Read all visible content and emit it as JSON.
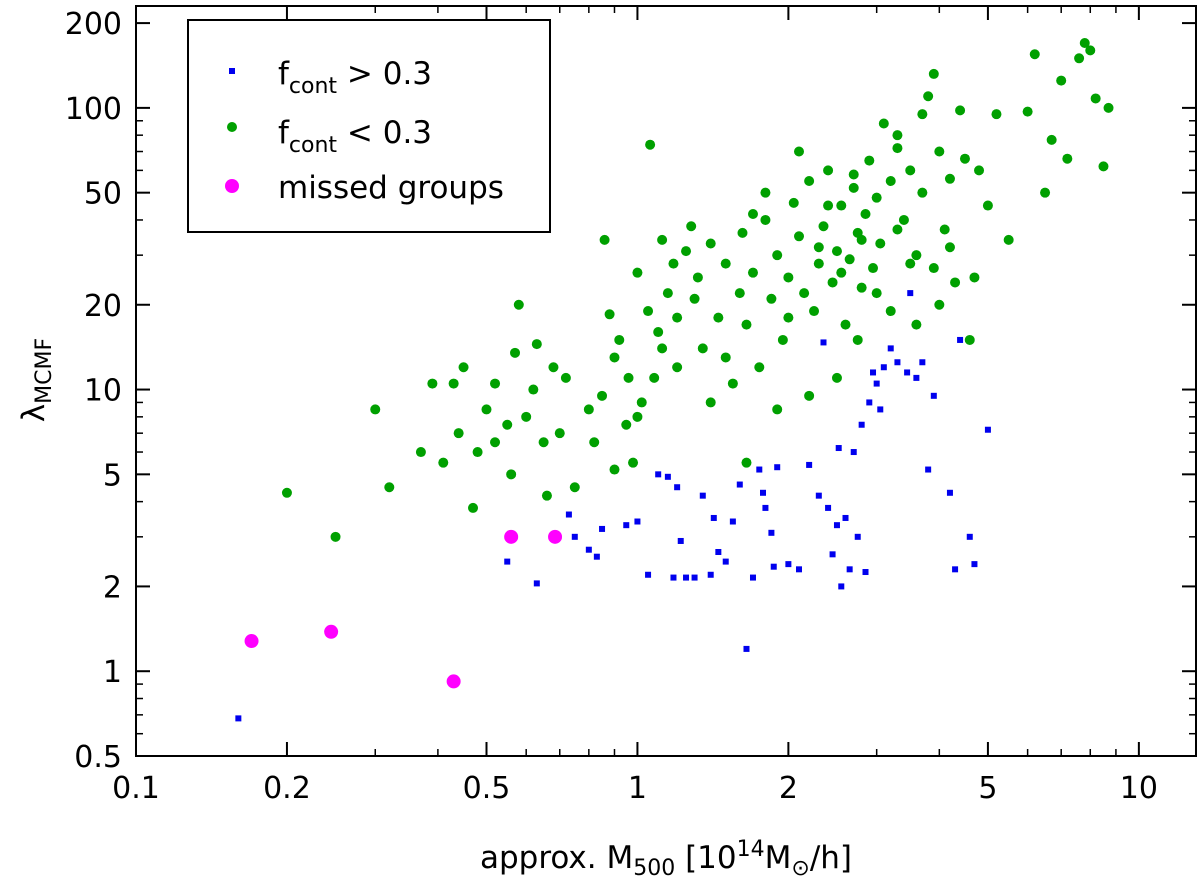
{
  "chart_data": {
    "type": "scatter",
    "xscale": "log",
    "yscale": "log",
    "xlim": [
      0.1,
      13
    ],
    "ylim": [
      0.5,
      230
    ],
    "xlabel": {
      "main": "approx. M",
      "sub": "500",
      "bracket_open": " [10",
      "sup": "14",
      "unit": "M",
      "sun": "⊙",
      "tail": "/h]"
    },
    "ylabel": {
      "main": "λ",
      "sub": "MCMF"
    },
    "x_ticks": [
      {
        "value": 0.1,
        "label": "0.1"
      },
      {
        "value": 0.2,
        "label": "0.2"
      },
      {
        "value": 0.5,
        "label": "0.5"
      },
      {
        "value": 1,
        "label": "1"
      },
      {
        "value": 2,
        "label": "2"
      },
      {
        "value": 5,
        "label": "5"
      },
      {
        "value": 10,
        "label": "10"
      }
    ],
    "y_ticks": [
      {
        "value": 0.5,
        "label": "0.5"
      },
      {
        "value": 1,
        "label": "1"
      },
      {
        "value": 2,
        "label": "2"
      },
      {
        "value": 5,
        "label": "5"
      },
      {
        "value": 10,
        "label": "10"
      },
      {
        "value": 20,
        "label": "20"
      },
      {
        "value": 50,
        "label": "50"
      },
      {
        "value": 100,
        "label": "100"
      },
      {
        "value": 200,
        "label": "200"
      }
    ],
    "legend": {
      "position": "top-left",
      "entries": [
        {
          "series": "fcont_high",
          "main": "f",
          "sub": "cont",
          "rel": " > 0.3"
        },
        {
          "series": "fcont_low",
          "main": "f",
          "sub": "cont",
          "rel": " < 0.3"
        },
        {
          "series": "missed",
          "text": "missed groups"
        }
      ]
    },
    "series": [
      {
        "key": "fcont_high",
        "name": "fcont > 0.3",
        "color": "#0000ee",
        "marker": "square",
        "points": [
          [
            0.16,
            0.68
          ],
          [
            0.55,
            2.45
          ],
          [
            0.63,
            2.05
          ],
          [
            0.73,
            3.6
          ],
          [
            0.75,
            3.0
          ],
          [
            0.8,
            2.7
          ],
          [
            0.83,
            2.55
          ],
          [
            0.85,
            3.2
          ],
          [
            0.95,
            3.3
          ],
          [
            1.0,
            3.4
          ],
          [
            1.05,
            2.2
          ],
          [
            1.1,
            5.0
          ],
          [
            1.15,
            4.9
          ],
          [
            1.18,
            2.15
          ],
          [
            1.2,
            4.5
          ],
          [
            1.22,
            2.9
          ],
          [
            1.25,
            2.15
          ],
          [
            1.3,
            2.15
          ],
          [
            1.35,
            4.2
          ],
          [
            1.4,
            2.2
          ],
          [
            1.42,
            3.5
          ],
          [
            1.45,
            2.65
          ],
          [
            1.5,
            2.45
          ],
          [
            1.55,
            3.4
          ],
          [
            1.6,
            4.6
          ],
          [
            1.65,
            1.2
          ],
          [
            1.7,
            2.15
          ],
          [
            1.75,
            5.2
          ],
          [
            1.78,
            4.3
          ],
          [
            1.8,
            3.8
          ],
          [
            1.85,
            3.1
          ],
          [
            1.87,
            2.35
          ],
          [
            1.9,
            5.3
          ],
          [
            2.0,
            2.4
          ],
          [
            2.1,
            2.3
          ],
          [
            2.2,
            5.4
          ],
          [
            2.3,
            4.2
          ],
          [
            2.35,
            14.7
          ],
          [
            2.4,
            3.8
          ],
          [
            2.45,
            2.6
          ],
          [
            2.5,
            3.3
          ],
          [
            2.52,
            6.2
          ],
          [
            2.55,
            2.0
          ],
          [
            2.6,
            3.5
          ],
          [
            2.65,
            2.3
          ],
          [
            2.7,
            6.0
          ],
          [
            2.75,
            3.0
          ],
          [
            2.8,
            7.5
          ],
          [
            2.85,
            2.25
          ],
          [
            2.9,
            9.0
          ],
          [
            2.95,
            11.5
          ],
          [
            3.0,
            10.5
          ],
          [
            3.05,
            8.5
          ],
          [
            3.1,
            12.0
          ],
          [
            3.2,
            14.0
          ],
          [
            3.3,
            12.5
          ],
          [
            3.45,
            11.5
          ],
          [
            3.5,
            22.0
          ],
          [
            3.6,
            11.0
          ],
          [
            3.7,
            12.5
          ],
          [
            3.8,
            5.2
          ],
          [
            3.9,
            9.5
          ],
          [
            4.2,
            4.3
          ],
          [
            4.3,
            2.3
          ],
          [
            4.4,
            15.0
          ],
          [
            4.6,
            3.0
          ],
          [
            4.7,
            2.4
          ],
          [
            5.0,
            7.2
          ]
        ]
      },
      {
        "key": "fcont_low",
        "name": "fcont < 0.3",
        "color": "#00a000",
        "marker": "circle",
        "points": [
          [
            0.2,
            4.3
          ],
          [
            0.25,
            3.0
          ],
          [
            0.3,
            8.5
          ],
          [
            0.32,
            4.5
          ],
          [
            0.37,
            6.0
          ],
          [
            0.39,
            10.5
          ],
          [
            0.41,
            5.5
          ],
          [
            0.43,
            10.5
          ],
          [
            0.44,
            7.0
          ],
          [
            0.45,
            12.0
          ],
          [
            0.47,
            3.8
          ],
          [
            0.48,
            6.0
          ],
          [
            0.5,
            8.5
          ],
          [
            0.52,
            10.5
          ],
          [
            0.52,
            6.5
          ],
          [
            0.55,
            7.5
          ],
          [
            0.56,
            5.0
          ],
          [
            0.57,
            13.5
          ],
          [
            0.58,
            20.0
          ],
          [
            0.6,
            8.0
          ],
          [
            0.62,
            10.0
          ],
          [
            0.63,
            14.5
          ],
          [
            0.65,
            6.5
          ],
          [
            0.66,
            4.2
          ],
          [
            0.68,
            12.0
          ],
          [
            0.7,
            7.0
          ],
          [
            0.72,
            11.0
          ],
          [
            0.75,
            4.5
          ],
          [
            0.8,
            8.5
          ],
          [
            0.82,
            6.5
          ],
          [
            0.85,
            9.5
          ],
          [
            0.86,
            34.0
          ],
          [
            0.88,
            18.5
          ],
          [
            0.9,
            13.0
          ],
          [
            0.92,
            15.0
          ],
          [
            0.95,
            7.5
          ],
          [
            0.96,
            11.0
          ],
          [
            0.98,
            5.5
          ],
          [
            1.0,
            26.0
          ],
          [
            1.02,
            9.0
          ],
          [
            1.05,
            19.0
          ],
          [
            1.06,
            74.0
          ],
          [
            1.08,
            11.0
          ],
          [
            1.1,
            16.0
          ],
          [
            1.12,
            14.0
          ],
          [
            1.15,
            22.0
          ],
          [
            1.18,
            28.0
          ],
          [
            1.2,
            18.0
          ],
          [
            1.25,
            31.0
          ],
          [
            1.3,
            21.0
          ],
          [
            1.32,
            25.0
          ],
          [
            1.35,
            14.0
          ],
          [
            1.4,
            33.0
          ],
          [
            1.45,
            18.0
          ],
          [
            1.5,
            28.0
          ],
          [
            1.55,
            10.5
          ],
          [
            1.6,
            22.0
          ],
          [
            1.62,
            36.0
          ],
          [
            1.65,
            17.0
          ],
          [
            1.7,
            26.0
          ],
          [
            1.75,
            12.0
          ],
          [
            1.8,
            40.0
          ],
          [
            1.85,
            21.0
          ],
          [
            1.9,
            30.0
          ],
          [
            1.95,
            15.0
          ],
          [
            2.0,
            25.0
          ],
          [
            2.05,
            46.0
          ],
          [
            2.1,
            35.0
          ],
          [
            2.15,
            22.0
          ],
          [
            2.2,
            55.0
          ],
          [
            2.25,
            19.0
          ],
          [
            2.3,
            28.0
          ],
          [
            2.35,
            38.0
          ],
          [
            2.4,
            60.0
          ],
          [
            2.45,
            24.0
          ],
          [
            2.5,
            31.0
          ],
          [
            2.55,
            45.0
          ],
          [
            2.6,
            17.0
          ],
          [
            2.65,
            29.0
          ],
          [
            2.7,
            52.0
          ],
          [
            2.75,
            36.0
          ],
          [
            2.8,
            23.0
          ],
          [
            2.85,
            42.0
          ],
          [
            2.9,
            65.0
          ],
          [
            2.95,
            27.0
          ],
          [
            3.0,
            48.0
          ],
          [
            3.05,
            33.0
          ],
          [
            3.1,
            88.0
          ],
          [
            3.2,
            55.0
          ],
          [
            3.3,
            72.0
          ],
          [
            3.4,
            40.0
          ],
          [
            3.5,
            60.0
          ],
          [
            3.6,
            30.0
          ],
          [
            3.7,
            50.0
          ],
          [
            3.8,
            110.0
          ],
          [
            3.9,
            132.0
          ],
          [
            4.0,
            70.0
          ],
          [
            4.1,
            37.0
          ],
          [
            4.2,
            56.0
          ],
          [
            4.3,
            24.0
          ],
          [
            4.4,
            98.0
          ],
          [
            4.5,
            66.0
          ],
          [
            4.6,
            15.0
          ],
          [
            4.8,
            60.0
          ],
          [
            5.0,
            45.0
          ],
          [
            5.2,
            95.0
          ],
          [
            5.5,
            34.0
          ],
          [
            6.0,
            97.0
          ],
          [
            6.2,
            155.0
          ],
          [
            6.5,
            50.0
          ],
          [
            6.7,
            77.0
          ],
          [
            7.0,
            125.0
          ],
          [
            7.2,
            66.0
          ],
          [
            7.6,
            150.0
          ],
          [
            7.8,
            170.0
          ],
          [
            8.0,
            160.0
          ],
          [
            8.2,
            108.0
          ],
          [
            8.5,
            62.0
          ],
          [
            8.7,
            100.0
          ],
          [
            1.12,
            34.0
          ],
          [
            1.28,
            38.0
          ],
          [
            1.5,
            13.0
          ],
          [
            1.7,
            42.0
          ],
          [
            2.0,
            18.0
          ],
          [
            2.3,
            32.0
          ],
          [
            2.55,
            26.0
          ],
          [
            2.8,
            34.0
          ],
          [
            3.0,
            22.0
          ],
          [
            3.3,
            37.0
          ],
          [
            3.5,
            28.0
          ],
          [
            3.9,
            27.0
          ],
          [
            4.2,
            32.0
          ],
          [
            4.7,
            25.0
          ],
          [
            0.9,
            5.2
          ],
          [
            1.0,
            8.0
          ],
          [
            1.2,
            12.0
          ],
          [
            1.4,
            9.0
          ],
          [
            1.65,
            5.5
          ],
          [
            1.9,
            8.5
          ],
          [
            2.2,
            9.5
          ],
          [
            2.5,
            11.0
          ],
          [
            2.75,
            15.0
          ],
          [
            3.2,
            19.0
          ],
          [
            3.6,
            17.0
          ],
          [
            4.0,
            20.0
          ],
          [
            1.8,
            50.0
          ],
          [
            2.1,
            70.0
          ],
          [
            2.4,
            45.0
          ],
          [
            2.7,
            58.0
          ],
          [
            3.3,
            80.0
          ],
          [
            3.7,
            95.0
          ]
        ]
      },
      {
        "key": "missed",
        "name": "missed groups",
        "color": "#ff00ff",
        "marker": "circle-large",
        "points": [
          [
            0.17,
            1.28
          ],
          [
            0.245,
            1.38
          ],
          [
            0.43,
            0.92
          ],
          [
            0.56,
            3.0
          ],
          [
            0.685,
            3.0
          ]
        ]
      }
    ]
  }
}
